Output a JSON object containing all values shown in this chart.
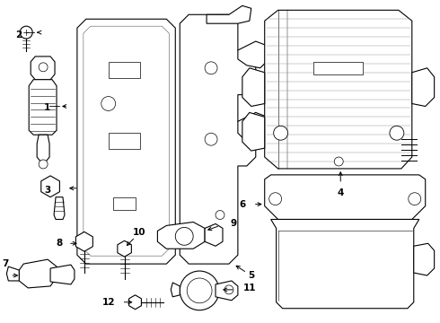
{
  "background_color": "#ffffff",
  "line_color": "#000000",
  "figsize": [
    4.9,
    3.6
  ],
  "dpi": 100,
  "label_fontsize": 7.5
}
